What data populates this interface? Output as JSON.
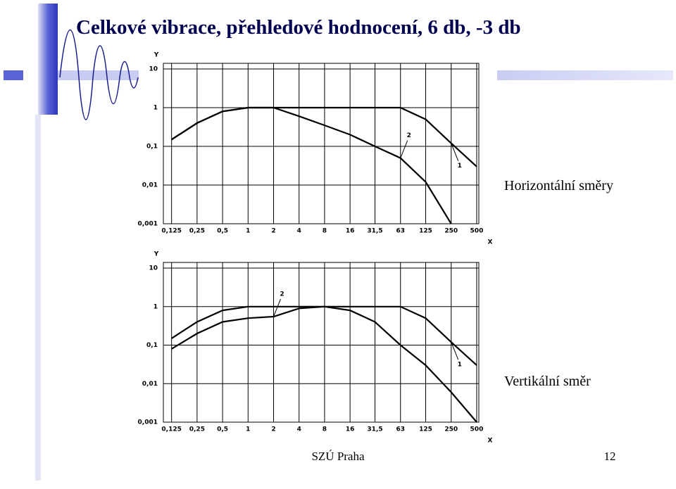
{
  "title": "Celkové vibrace, přehledové hodnocení, 6 db, -3 db",
  "footer": {
    "text": "SZÚ Praha",
    "page": "12"
  },
  "chart_data": [
    {
      "type": "line",
      "subtitle": "Horizontální směry",
      "xlabel": "X",
      "ylabel": "Y",
      "xscale": "log",
      "yscale": "log",
      "grid": true,
      "xlim": [
        0.1,
        530
      ],
      "ylim": [
        0.001,
        10
      ],
      "xticks": [
        {
          "value": 0.125,
          "label": "0,125"
        },
        {
          "value": 0.25,
          "label": "0,25"
        },
        {
          "value": 0.5,
          "label": "0,5"
        },
        1,
        2,
        4,
        8,
        16,
        {
          "value": 31.5,
          "label": "31,5"
        },
        63,
        125,
        250,
        500
      ],
      "yticks": [
        {
          "value": 0.001,
          "label": "0,001"
        },
        {
          "value": 0.01,
          "label": "0,01"
        },
        {
          "value": 0.1,
          "label": "0,1"
        },
        1,
        10
      ],
      "x": [
        0.125,
        0.25,
        0.5,
        1,
        2,
        4,
        8,
        16,
        31.5,
        63,
        125,
        250,
        500
      ],
      "series": [
        {
          "name": "1",
          "color": "#000000",
          "values": [
            0.15,
            0.4,
            0.8,
            1,
            1,
            1,
            1,
            1,
            1,
            1,
            0.5,
            0.12,
            0.03
          ]
        },
        {
          "name": "2",
          "color": "#000000",
          "values": [
            0.15,
            0.4,
            0.8,
            1,
            1,
            0.6,
            0.35,
            0.2,
            0.1,
            0.05,
            0.012,
            0.001,
            null
          ]
        }
      ]
    },
    {
      "type": "line",
      "subtitle": "Vertikální směr",
      "xlabel": "X",
      "ylabel": "Y",
      "xscale": "log",
      "yscale": "log",
      "grid": true,
      "xlim": [
        0.1,
        530
      ],
      "ylim": [
        0.001,
        10
      ],
      "xticks": [
        {
          "value": 0.125,
          "label": "0,125"
        },
        {
          "value": 0.25,
          "label": "0,25"
        },
        {
          "value": 0.5,
          "label": "0,5"
        },
        1,
        2,
        4,
        8,
        16,
        {
          "value": 31.5,
          "label": "31,5"
        },
        63,
        125,
        250,
        500
      ],
      "yticks": [
        {
          "value": 0.001,
          "label": "0,001"
        },
        {
          "value": 0.01,
          "label": "0,01"
        },
        {
          "value": 0.1,
          "label": "0,1"
        },
        1,
        10
      ],
      "x": [
        0.125,
        0.25,
        0.5,
        1,
        2,
        4,
        8,
        16,
        31.5,
        63,
        125,
        250,
        500
      ],
      "series": [
        {
          "name": "1",
          "color": "#000000",
          "values": [
            0.15,
            0.4,
            0.8,
            1,
            1,
            1,
            1,
            1,
            1,
            1,
            0.5,
            0.12,
            0.03
          ]
        },
        {
          "name": "2",
          "color": "#000000",
          "values": [
            0.08,
            0.2,
            0.4,
            0.5,
            0.55,
            0.9,
            1,
            0.8,
            0.4,
            0.1,
            0.03,
            0.006,
            0.001
          ]
        }
      ]
    }
  ]
}
